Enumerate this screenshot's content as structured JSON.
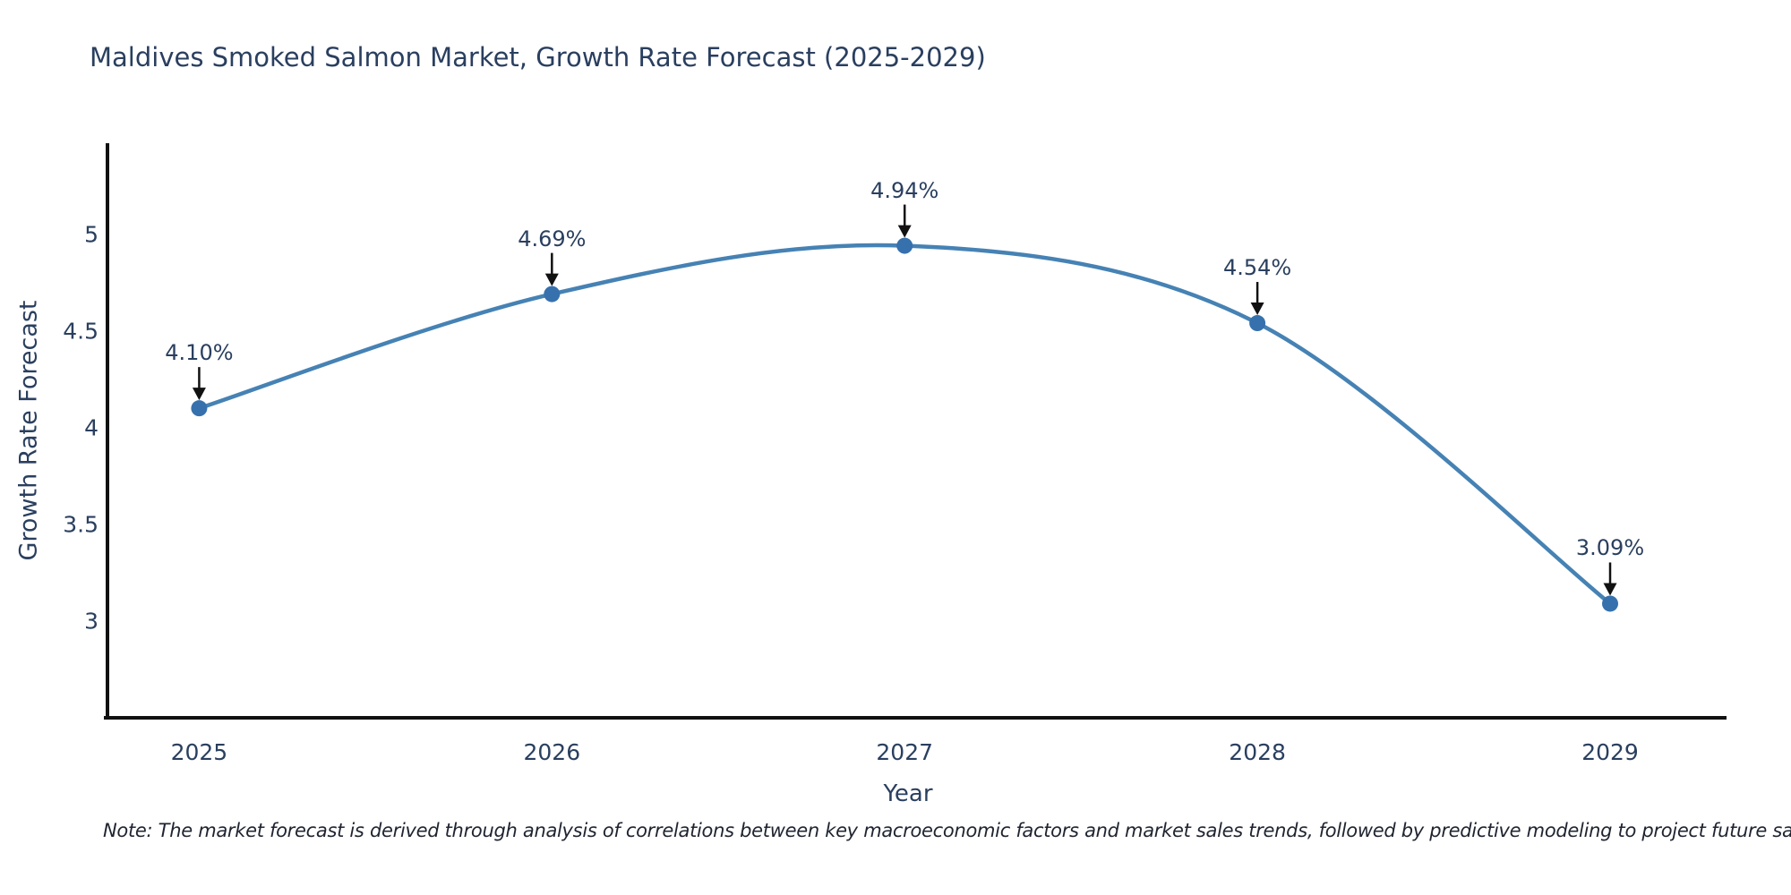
{
  "page": {
    "background": "#ffffff"
  },
  "note": {
    "text": "Note: The market forecast is derived through analysis of correlations between key macroeconomic factors and market sales trends, followed by predictive modeling to project future sales"
  },
  "chart_data": {
    "type": "line",
    "title": "Maldives Smoked Salmon Market, Growth Rate Forecast (2025-2029)",
    "xlabel": "Year",
    "ylabel": "Growth Rate Forecast",
    "x": [
      2025,
      2026,
      2027,
      2028,
      2029
    ],
    "series": [
      {
        "name": "Growth Rate Forecast",
        "values": [
          4.1,
          4.69,
          4.94,
          4.54,
          3.09
        ]
      }
    ],
    "point_labels": [
      "4.10%",
      "4.69%",
      "4.94%",
      "4.54%",
      "3.09%"
    ],
    "yticks": [
      3,
      3.5,
      4,
      4.5,
      5
    ],
    "ytick_labels": [
      "3",
      "3.5",
      "4",
      "4.5",
      "5"
    ],
    "ylim": [
      2.5,
      5.47
    ],
    "xlim": [
      2024.74,
      2029.33
    ],
    "line_shape": "spline",
    "grid": false,
    "legend_position": "none",
    "annotations_have_arrows": true,
    "colors": {
      "line": "#4682b4",
      "marker": "#3671ad",
      "axis": "#111111",
      "text": "#2a3f5f",
      "arrow": "#111111",
      "background": "#ffffff"
    }
  }
}
